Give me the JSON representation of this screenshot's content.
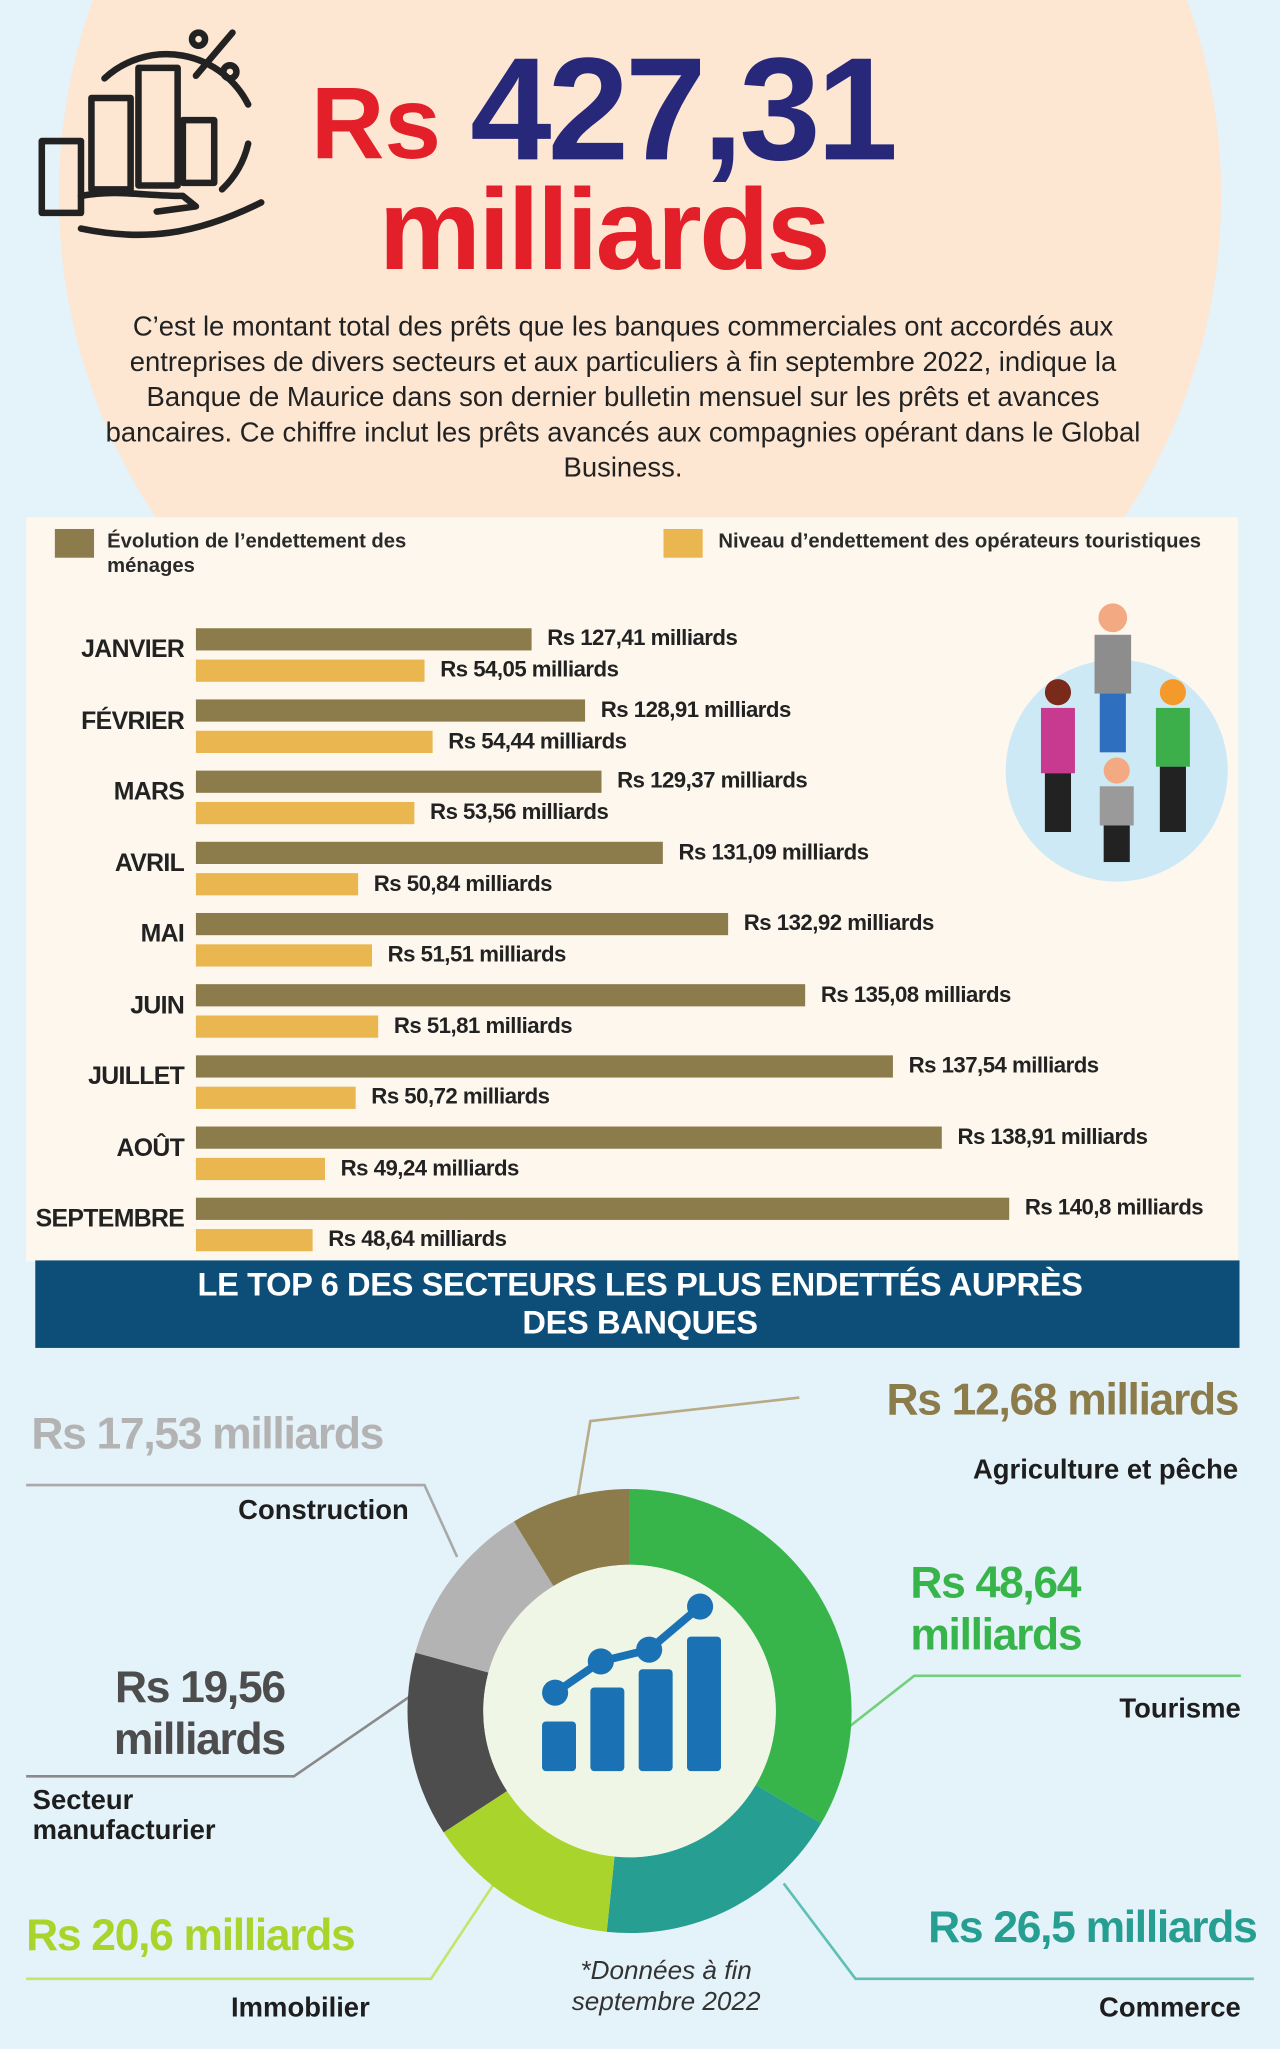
{
  "header": {
    "currency": "Rs",
    "amount": "427,31",
    "unit": "milliards",
    "text": "C’est le montant total des prêts que les banques commerciales ont accordés aux entreprises de divers secteurs et aux particuliers à fin septembre 2022, indique la Banque de Maurice dans son dernier bulletin mensuel sur les prêts et avances bancaires. Ce chiffre inclut les prêts avancés aux compagnies opérant dans le Global Business."
  },
  "chart_data": [
    {
      "type": "bar",
      "orientation": "horizontal",
      "categories": [
        "JANVIER",
        "FÉVRIER",
        "MARS",
        "AVRIL",
        "MAI",
        "JUIN",
        "JUILLET",
        "AOÛT",
        "SEPTEMBRE"
      ],
      "series": [
        {
          "name": "Évolution de l’endettement des ménages",
          "color": "#8c7b4b",
          "xlim": [
            118,
            147
          ],
          "values": [
            127.41,
            128.91,
            129.37,
            131.09,
            132.92,
            135.08,
            137.54,
            138.91,
            140.8
          ],
          "value_labels": [
            "Rs 127,41 milliards",
            "Rs 128,91 milliards",
            "Rs 129,37 milliards",
            "Rs 131,09 milliards",
            "Rs 132,92 milliards",
            "Rs 135,08 milliards",
            "Rs 137,54 milliards",
            "Rs 138,91 milliards",
            "Rs 140,8 milliards"
          ]
        },
        {
          "name": "Niveau d’endettement des opérateurs touristiques",
          "color": "#e9b650",
          "xlim": [
            43,
            93
          ],
          "values": [
            54.05,
            54.44,
            53.56,
            50.84,
            51.51,
            51.81,
            50.72,
            49.24,
            48.64
          ],
          "value_labels": [
            "Rs 54,05 milliards",
            "Rs 54,44 milliards",
            "Rs 53,56 milliards",
            "Rs 50,84 milliards",
            "Rs 51,51 milliards",
            "Rs 51,81 milliards",
            "Rs 50,72 milliards",
            "Rs 49,24 milliards",
            "Rs 48,64 milliards"
          ]
        }
      ],
      "legend": "top"
    },
    {
      "type": "pie",
      "title": "LE TOP 6 DES SECTEURS LES PLUS ENDETTÉS AUPRÈS DES BANQUES",
      "categories": [
        "Tourisme",
        "Commerce",
        "Immobilier",
        "Secteur manufacturier",
        "Construction",
        "Agriculture et pêche"
      ],
      "values": [
        48.64,
        26.5,
        20.6,
        19.56,
        17.53,
        12.68
      ],
      "value_labels": [
        "Rs 48,64 milliards",
        "Rs 26,5 milliards",
        "Rs 20,6 milliards",
        "Rs 19,56 milliards",
        "Rs 17,53 milliards",
        "Rs 12,68 milliards"
      ],
      "colors": [
        "#38b54a",
        "#279e92",
        "#a9d42b",
        "#4d4d4d",
        "#b3b3b3",
        "#8c7b4b"
      ],
      "note": "*Données à fin septembre 2022"
    }
  ]
}
